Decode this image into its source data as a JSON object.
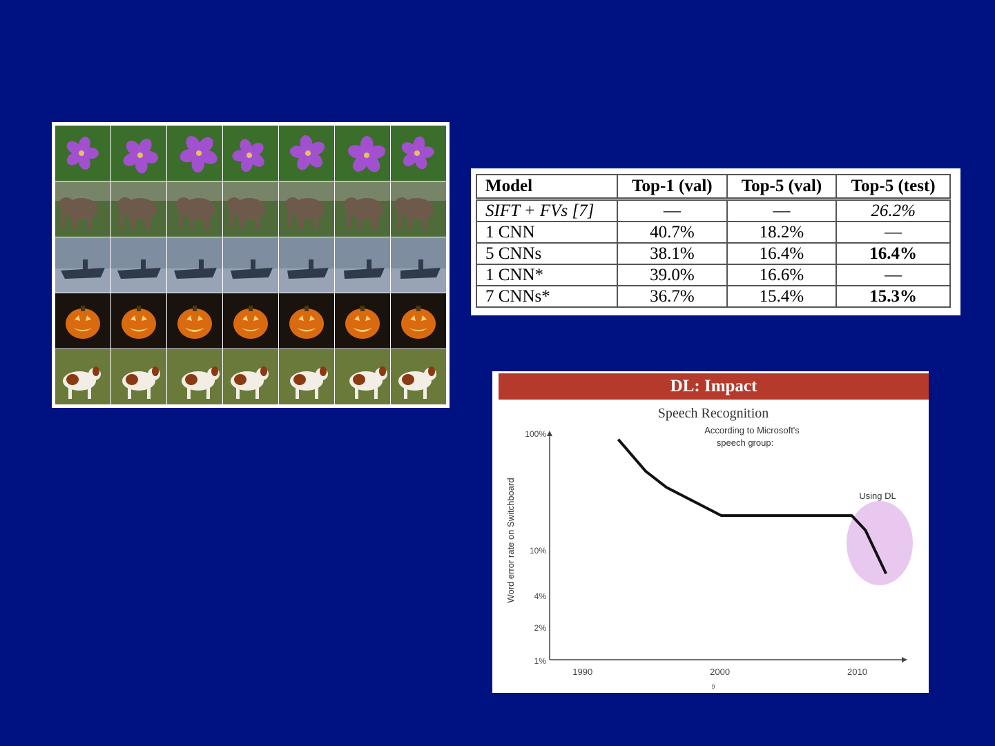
{
  "image_grid": {
    "rows": [
      {
        "category": "flower",
        "tiles": [
          "flower",
          "flower",
          "flower",
          "flower",
          "flower",
          "flower",
          "flower"
        ]
      },
      {
        "category": "elephant",
        "tiles": [
          "elephant",
          "elephant",
          "elephant",
          "elephant",
          "elephant",
          "elephant",
          "elephant"
        ]
      },
      {
        "category": "aircraft-carrier",
        "tiles": [
          "carrier",
          "carrier",
          "carrier",
          "carrier",
          "carrier",
          "carrier",
          "carrier"
        ]
      },
      {
        "category": "jack-o-lantern",
        "tiles": [
          "pumpkin",
          "pumpkin",
          "pumpkin",
          "pumpkin",
          "pumpkin",
          "pumpkin",
          "pumpkin"
        ]
      },
      {
        "category": "dog",
        "tiles": [
          "dog",
          "dog",
          "dog",
          "dog",
          "dog",
          "dog",
          "dog"
        ]
      }
    ],
    "colors": {
      "flower": [
        "#3b6e2a",
        "#a64fd6",
        "#e6c35a"
      ],
      "elephant": [
        "#4f6b3a",
        "#6e5a4a",
        "#8a8f7a"
      ],
      "carrier": [
        "#7f8da0",
        "#2f3b4a",
        "#c9d2dc"
      ],
      "pumpkin": [
        "#1a120c",
        "#d96a10",
        "#ffd27a"
      ],
      "dog": [
        "#6a7a3a",
        "#f2eee6",
        "#8a3a12"
      ]
    }
  },
  "results_table": {
    "headers": [
      "Model",
      "Top-1 (val)",
      "Top-5 (val)",
      "Top-5 (test)"
    ],
    "rows": [
      {
        "model": "SIFT + FVs [7]",
        "top1_val": "—",
        "top5_val": "—",
        "top5_test": "26.2%"
      },
      {
        "model": "1 CNN",
        "top1_val": "40.7%",
        "top5_val": "18.2%",
        "top5_test": "—"
      },
      {
        "model": "5 CNNs",
        "top1_val": "38.1%",
        "top5_val": "16.4%",
        "top5_test": "16.4%"
      },
      {
        "model": "1 CNN*",
        "top1_val": "39.0%",
        "top5_val": "16.6%",
        "top5_test": "—"
      },
      {
        "model": "7 CNNs*",
        "top1_val": "36.7%",
        "top5_val": "15.4%",
        "top5_test": "15.3%"
      }
    ]
  },
  "dl_impact": {
    "header": "DL: Impact",
    "header_color": "#b53a2b",
    "chart_data": {
      "type": "line",
      "title": "Speech Recognition",
      "ylabel": "Word error rate on Switchboard",
      "y_tick_labels": [
        "100%",
        "10%",
        "4%",
        "2%",
        "1%"
      ],
      "x_tick_labels": [
        "1990",
        "2000",
        "2010"
      ],
      "xlim": [
        1988,
        2014
      ],
      "series": [
        {
          "x": [
            1993,
            1995,
            1996.5,
            2000.5,
            2010,
            2011,
            2012.5
          ],
          "y": [
            90,
            48,
            35,
            20,
            20,
            15,
            6
          ]
        }
      ],
      "annotations": [
        {
          "text": "According to Microsoft's speech group:",
          "x": 2002,
          "y": 85
        },
        {
          "text": "Using DL",
          "x": 2011,
          "y": 23,
          "highlight_color": "#e9c8ef"
        }
      ],
      "page_number": "9"
    }
  }
}
